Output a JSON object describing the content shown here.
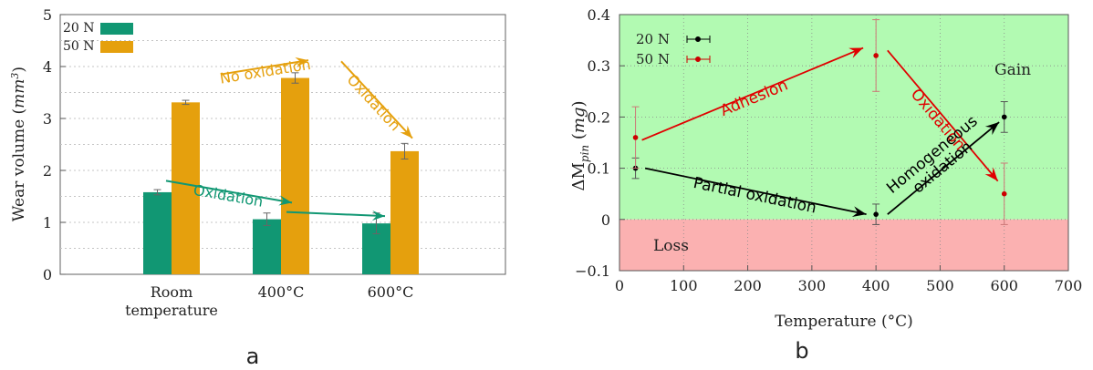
{
  "chart_data": [
    {
      "type": "bar",
      "panel_label": "a",
      "categories": [
        [
          "Room",
          "temperature"
        ],
        [
          "400°C"
        ],
        [
          "600°C"
        ]
      ],
      "series": [
        {
          "name": "20 N",
          "color": "#119773",
          "values": [
            1.58,
            1.06,
            0.98
          ],
          "errors": [
            0.05,
            0.12,
            0.2
          ]
        },
        {
          "name": "50 N",
          "color": "#e5a00d",
          "values": [
            3.31,
            3.78,
            2.37
          ],
          "errors": [
            0.04,
            0.1,
            0.15
          ]
        }
      ],
      "ylabel": "Wear volume (",
      "ylabel_unit": "mm",
      "ylabel_exp": "3",
      "ylabel_close": ")",
      "ylim": [
        0,
        5
      ],
      "yticks": [
        "0",
        "1",
        "2",
        "3",
        "4",
        "5"
      ],
      "grid": true,
      "legend_position": "top-left",
      "annotations": [
        {
          "text": "No oxidation",
          "color": "#e5a00d",
          "from": [
            1.45,
            3.85
          ],
          "to": [
            2.25,
            4.12
          ]
        },
        {
          "text": "Oxidation",
          "color": "#e5a00d",
          "from": [
            2.55,
            4.1
          ],
          "to": [
            3.2,
            2.62
          ]
        },
        {
          "text": "Oxidation",
          "color": "#119773",
          "from": [
            0.95,
            1.8
          ],
          "to": [
            2.1,
            1.38
          ]
        },
        {
          "text": "",
          "color": "#119773",
          "from": [
            2.05,
            1.2
          ],
          "to": [
            2.95,
            1.12
          ]
        }
      ]
    },
    {
      "type": "scatter",
      "panel_label": "b",
      "xlabel": "Temperature (°C)",
      "ylabel_base": "ΔM",
      "ylabel_sub": "pin",
      "ylabel_unit": "mg",
      "xlim": [
        0,
        700
      ],
      "ylim": [
        -0.1,
        0.4
      ],
      "xticks": [
        "0",
        "100",
        "200",
        "300",
        "400",
        "500",
        "600",
        "700"
      ],
      "yticks": [
        "−0.1",
        "0",
        "0.1",
        "0.2",
        "0.3",
        "0.4"
      ],
      "series": [
        {
          "name": "20 N",
          "color": "#000000",
          "x": [
            25,
            400,
            600
          ],
          "y": [
            0.1,
            0.01,
            0.2
          ],
          "err": [
            0.02,
            0.02,
            0.03
          ]
        },
        {
          "name": "50 N",
          "color": "#cc0000",
          "x": [
            25,
            400,
            600
          ],
          "y": [
            0.16,
            0.32,
            0.05
          ],
          "err": [
            0.06,
            0.07,
            0.06
          ]
        }
      ],
      "regions": [
        {
          "label": "Gain",
          "color": "#b2fab2",
          "y_range": [
            0,
            0.4
          ]
        },
        {
          "label": "Loss",
          "color": "#fbb1b1",
          "y_range": [
            -0.1,
            0
          ]
        }
      ],
      "annotations": [
        {
          "text": "Adhesion",
          "color": "#e00000",
          "from": [
            35,
            0.155
          ],
          "to": [
            380,
            0.335
          ]
        },
        {
          "text": "Oxidation",
          "color": "#e00000",
          "from": [
            418,
            0.33
          ],
          "to": [
            590,
            0.075
          ]
        },
        {
          "text": "Partial oxidation",
          "color": "#000000",
          "from": [
            40,
            0.1
          ],
          "to": [
            385,
            0.01
          ]
        },
        {
          "text": "Homogeneous\noxidation",
          "color": "#000000",
          "from": [
            418,
            0.01
          ],
          "to": [
            592,
            0.19
          ]
        }
      ],
      "legend_position": "top-left"
    }
  ]
}
